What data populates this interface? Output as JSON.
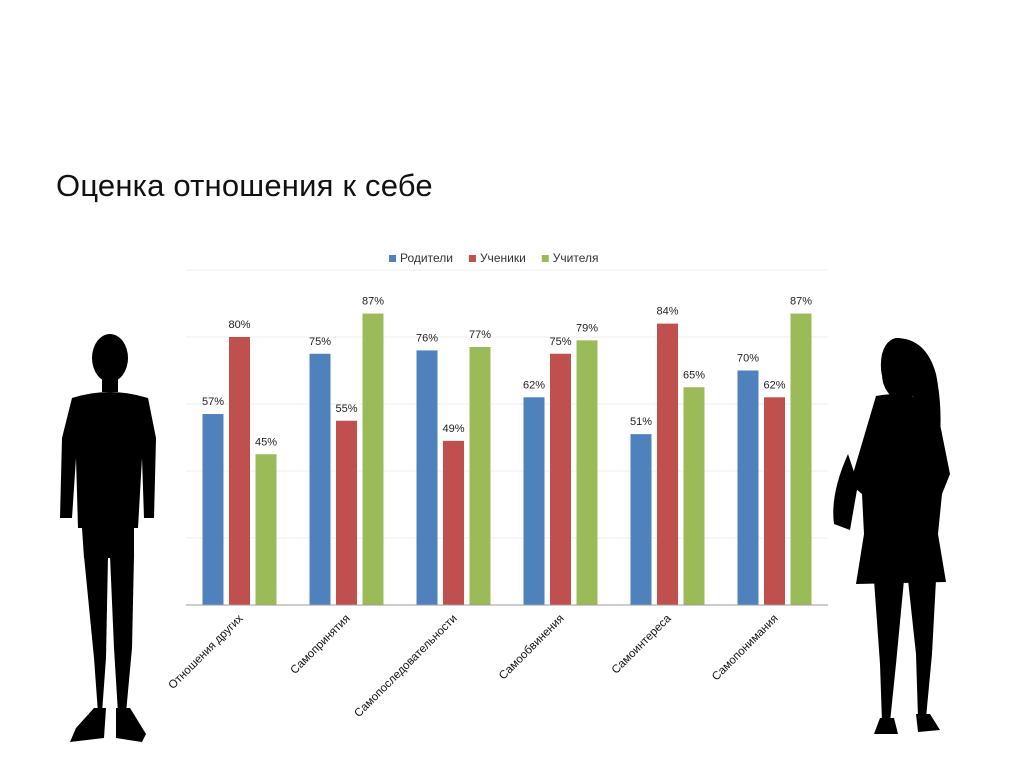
{
  "title": "Оценка отношения к себе",
  "chart_data": {
    "type": "bar",
    "categories": [
      "Отношения других",
      "Самопринятия",
      "Самопоследовательности",
      "Самообвинения",
      "Самоинтереса",
      "Самопонимания"
    ],
    "series": [
      {
        "name": "Родители",
        "color": "#4f81bd",
        "values": [
          57,
          75,
          76,
          62,
          51,
          70
        ]
      },
      {
        "name": "Ученики",
        "color": "#c0504d",
        "values": [
          80,
          55,
          49,
          75,
          84,
          62
        ]
      },
      {
        "name": "Учителя",
        "color": "#9bbb59",
        "values": [
          45,
          87,
          77,
          79,
          65,
          87
        ]
      }
    ],
    "value_suffix": "%",
    "ylim": [
      0,
      100
    ],
    "grid": true,
    "legend_position": "top",
    "xlabel": "",
    "ylabel": ""
  }
}
